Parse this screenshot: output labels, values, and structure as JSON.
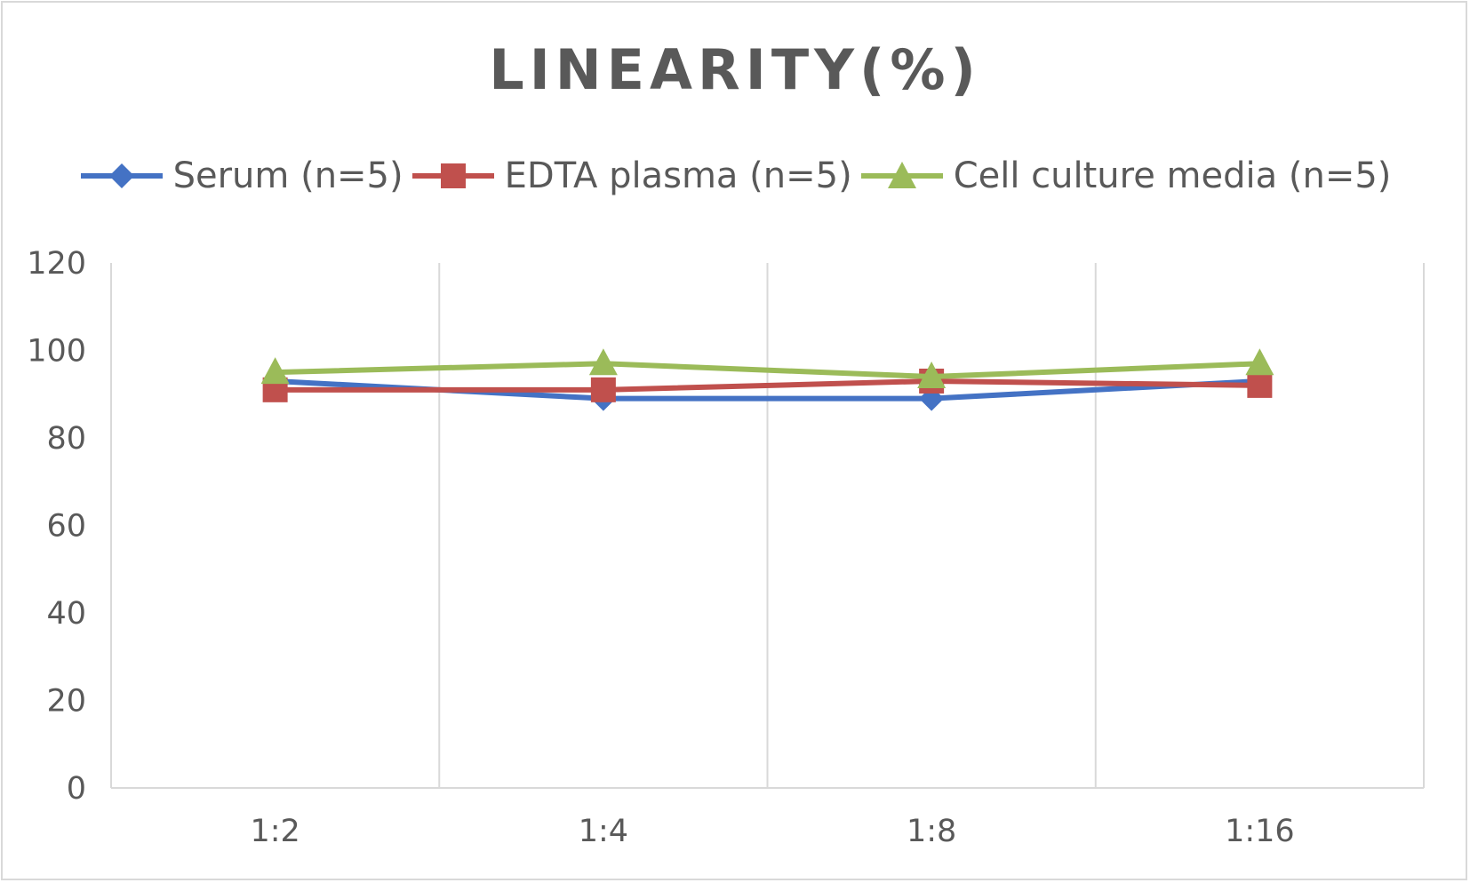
{
  "chart_data": {
    "type": "line",
    "title": "LINEARITY(%)",
    "xlabel": "",
    "ylabel": "",
    "categories": [
      "1:2",
      "1:4",
      "1:8",
      "1:16"
    ],
    "ylim": [
      0,
      120
    ],
    "yticks": [
      0,
      20,
      40,
      60,
      80,
      100,
      120
    ],
    "grid": "vertical",
    "legend_position": "top",
    "series": [
      {
        "name": "Serum (n=5)",
        "values": [
          93,
          89,
          89,
          93
        ],
        "color": "#4472c4",
        "marker": "diamond"
      },
      {
        "name": "EDTA plasma (n=5)",
        "values": [
          91,
          91,
          93,
          92
        ],
        "color": "#c0504d",
        "marker": "square"
      },
      {
        "name": "Cell culture media (n=5)",
        "values": [
          95,
          97,
          94,
          97
        ],
        "color": "#9bbb59",
        "marker": "triangle"
      }
    ]
  }
}
